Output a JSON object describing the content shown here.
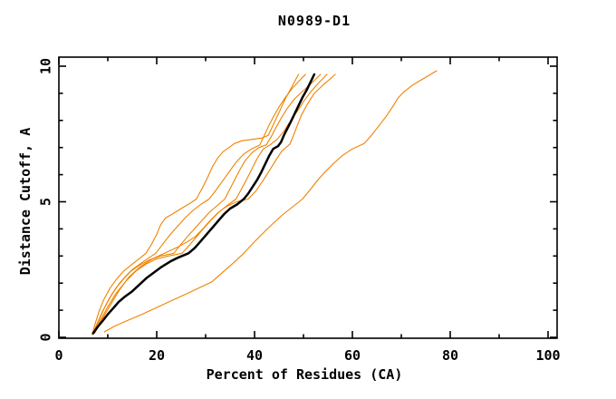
{
  "title": "N0989-D1",
  "axes": {
    "xlabel": "Percent of Residues (CA)",
    "ylabel": "Distance Cutoff, A"
  },
  "chart_data": {
    "type": "line",
    "title": "N0989-D1",
    "xlabel": "Percent of Residues (CA)",
    "ylabel": "Distance Cutoff, A",
    "xlim": [
      0,
      100
    ],
    "ylim": [
      0,
      10
    ],
    "grid": false,
    "legend": "none",
    "x_major_ticks": [
      0,
      20,
      40,
      60,
      80,
      100
    ],
    "x_tick_labels": [
      "0",
      "20",
      "40",
      "60",
      "80",
      "100"
    ],
    "x_minor_step": 10,
    "y_major_ticks": [
      0,
      5,
      10
    ],
    "y_tick_labels": [
      "0",
      "5",
      "10"
    ],
    "y_minor_step": 1,
    "colors": {
      "highlight_curve": "#000000",
      "other_curves": "#f08200",
      "frame": "#000000",
      "background": "#ffffff"
    },
    "series": [
      {
        "name": "orange-curve-1",
        "color": "#f08200",
        "width": 1.1,
        "points": [
          [
            6.8,
            0.1
          ],
          [
            7.4,
            0.5
          ],
          [
            8.2,
            0.95
          ],
          [
            9.2,
            1.4
          ],
          [
            10.4,
            1.8
          ],
          [
            11.8,
            2.15
          ],
          [
            13.3,
            2.45
          ],
          [
            15,
            2.7
          ],
          [
            16.4,
            2.9
          ],
          [
            17.8,
            3.1
          ],
          [
            19,
            3.45
          ],
          [
            20,
            3.8
          ],
          [
            20.8,
            4.15
          ],
          [
            21.8,
            4.4
          ],
          [
            23.2,
            4.55
          ],
          [
            25,
            4.75
          ],
          [
            26.6,
            4.92
          ],
          [
            28.1,
            5.1
          ],
          [
            29.3,
            5.5
          ],
          [
            30.4,
            5.9
          ],
          [
            31.4,
            6.3
          ],
          [
            32.4,
            6.6
          ],
          [
            33.6,
            6.85
          ],
          [
            34.8,
            7.0
          ],
          [
            35.9,
            7.15
          ],
          [
            37.5,
            7.25
          ],
          [
            39.5,
            7.3
          ],
          [
            41.5,
            7.35
          ],
          [
            42.8,
            7.45
          ],
          [
            43.6,
            7.75
          ],
          [
            44.5,
            8.1
          ],
          [
            45.4,
            8.45
          ],
          [
            46.3,
            8.8
          ],
          [
            47.2,
            9.1
          ],
          [
            48.1,
            9.4
          ],
          [
            49,
            9.7
          ]
        ]
      },
      {
        "name": "orange-curve-2",
        "color": "#f08200",
        "width": 1.1,
        "points": [
          [
            6.9,
            0.12
          ],
          [
            7.8,
            0.5
          ],
          [
            8.9,
            0.95
          ],
          [
            10.2,
            1.4
          ],
          [
            11.6,
            1.8
          ],
          [
            13.2,
            2.15
          ],
          [
            15,
            2.5
          ],
          [
            17.3,
            2.8
          ],
          [
            19.8,
            3.1
          ],
          [
            21.3,
            3.45
          ],
          [
            22.8,
            3.8
          ],
          [
            24.3,
            4.1
          ],
          [
            25.8,
            4.4
          ],
          [
            27.4,
            4.68
          ],
          [
            29,
            4.9
          ],
          [
            30.7,
            5.1
          ],
          [
            32,
            5.4
          ],
          [
            33.4,
            5.75
          ],
          [
            34.8,
            6.1
          ],
          [
            36.2,
            6.45
          ],
          [
            37.7,
            6.75
          ],
          [
            39.4,
            6.95
          ],
          [
            41.1,
            7.1
          ],
          [
            42,
            7.45
          ],
          [
            42.9,
            7.8
          ],
          [
            43.9,
            8.15
          ],
          [
            45,
            8.5
          ],
          [
            46.3,
            8.85
          ],
          [
            47.8,
            9.2
          ],
          [
            49.1,
            9.45
          ],
          [
            50.4,
            9.7
          ]
        ]
      },
      {
        "name": "orange-curve-3",
        "color": "#f08200",
        "width": 1.1,
        "points": [
          [
            7,
            0.12
          ],
          [
            8,
            0.55
          ],
          [
            9.2,
            1.05
          ],
          [
            10.7,
            1.55
          ],
          [
            12.4,
            2.0
          ],
          [
            14.4,
            2.4
          ],
          [
            16.4,
            2.65
          ],
          [
            18.4,
            2.85
          ],
          [
            20.8,
            3.0
          ],
          [
            23.5,
            3.1
          ],
          [
            24.9,
            3.42
          ],
          [
            26.3,
            3.72
          ],
          [
            27.7,
            4.0
          ],
          [
            29.2,
            4.3
          ],
          [
            30.7,
            4.6
          ],
          [
            32.3,
            4.85
          ],
          [
            33.9,
            5.1
          ],
          [
            34.9,
            5.45
          ],
          [
            35.9,
            5.8
          ],
          [
            36.9,
            6.15
          ],
          [
            38,
            6.5
          ],
          [
            39.4,
            6.8
          ],
          [
            40.9,
            7.0
          ],
          [
            42.4,
            7.1
          ],
          [
            43.4,
            7.4
          ],
          [
            44.4,
            7.75
          ],
          [
            45.5,
            8.1
          ],
          [
            46.7,
            8.45
          ],
          [
            48.2,
            8.8
          ],
          [
            50,
            9.1
          ],
          [
            51.8,
            9.4
          ],
          [
            53.5,
            9.7
          ]
        ]
      },
      {
        "name": "orange-curve-4",
        "color": "#f08200",
        "width": 1.1,
        "points": [
          [
            7.2,
            0.15
          ],
          [
            8.4,
            0.6
          ],
          [
            9.9,
            1.1
          ],
          [
            11.6,
            1.6
          ],
          [
            13.6,
            2.05
          ],
          [
            15.8,
            2.45
          ],
          [
            17.8,
            2.7
          ],
          [
            19.8,
            2.88
          ],
          [
            22.4,
            3.0
          ],
          [
            25.2,
            3.1
          ],
          [
            26.7,
            3.4
          ],
          [
            28.1,
            3.7
          ],
          [
            29.5,
            4.0
          ],
          [
            31,
            4.3
          ],
          [
            32.6,
            4.6
          ],
          [
            34.3,
            4.85
          ],
          [
            36.2,
            5.1
          ],
          [
            37.4,
            5.5
          ],
          [
            38.6,
            5.9
          ],
          [
            39.7,
            6.3
          ],
          [
            40.7,
            6.65
          ],
          [
            41.8,
            6.95
          ],
          [
            43.2,
            7.1
          ],
          [
            44.6,
            7.3
          ],
          [
            46,
            7.6
          ],
          [
            47.4,
            8.0
          ],
          [
            48.8,
            8.35
          ],
          [
            50.2,
            8.75
          ],
          [
            51.7,
            9.1
          ],
          [
            53.2,
            9.4
          ],
          [
            54.8,
            9.7
          ]
        ]
      },
      {
        "name": "orange-curve-5",
        "color": "#f08200",
        "width": 1.1,
        "points": [
          [
            7.3,
            0.15
          ],
          [
            8.7,
            0.62
          ],
          [
            10.4,
            1.15
          ],
          [
            12.2,
            1.7
          ],
          [
            14.2,
            2.2
          ],
          [
            16.6,
            2.6
          ],
          [
            19.2,
            2.9
          ],
          [
            21.8,
            3.12
          ],
          [
            24.2,
            3.32
          ],
          [
            26.2,
            3.52
          ],
          [
            27.9,
            3.72
          ],
          [
            29.4,
            4.0
          ],
          [
            30.9,
            4.3
          ],
          [
            32.4,
            4.58
          ],
          [
            34.2,
            4.82
          ],
          [
            36.3,
            5.0
          ],
          [
            38.7,
            5.1
          ],
          [
            40.3,
            5.4
          ],
          [
            41.8,
            5.8
          ],
          [
            43.2,
            6.2
          ],
          [
            44.4,
            6.55
          ],
          [
            45.5,
            6.85
          ],
          [
            46.4,
            7.0
          ],
          [
            47.2,
            7.12
          ],
          [
            47.9,
            7.42
          ],
          [
            48.7,
            7.8
          ],
          [
            49.6,
            8.2
          ],
          [
            50.8,
            8.6
          ],
          [
            52.2,
            9.0
          ],
          [
            54.3,
            9.35
          ],
          [
            56.5,
            9.7
          ]
        ]
      },
      {
        "name": "orange-curve-6",
        "color": "#f08200",
        "width": 1.1,
        "points": [
          [
            9.3,
            0.2
          ],
          [
            11.5,
            0.42
          ],
          [
            14,
            0.62
          ],
          [
            17,
            0.85
          ],
          [
            20,
            1.1
          ],
          [
            23,
            1.35
          ],
          [
            26,
            1.6
          ],
          [
            28.6,
            1.82
          ],
          [
            31.3,
            2.05
          ],
          [
            33.5,
            2.4
          ],
          [
            35.7,
            2.75
          ],
          [
            37.8,
            3.1
          ],
          [
            39.6,
            3.45
          ],
          [
            41.5,
            3.8
          ],
          [
            43.5,
            4.15
          ],
          [
            45.6,
            4.5
          ],
          [
            47.7,
            4.8
          ],
          [
            49.8,
            5.1
          ],
          [
            51.4,
            5.45
          ],
          [
            52.9,
            5.8
          ],
          [
            54.4,
            6.1
          ],
          [
            56.1,
            6.4
          ],
          [
            57.9,
            6.7
          ],
          [
            60,
            6.95
          ],
          [
            62.4,
            7.15
          ],
          [
            63.9,
            7.45
          ],
          [
            65.4,
            7.8
          ],
          [
            66.9,
            8.15
          ],
          [
            68.2,
            8.5
          ],
          [
            69.3,
            8.82
          ],
          [
            70.5,
            9.05
          ],
          [
            72.3,
            9.3
          ],
          [
            74.6,
            9.55
          ],
          [
            77.2,
            9.83
          ]
        ]
      },
      {
        "name": "black-curve",
        "color": "#000000",
        "width": 2.5,
        "points": [
          [
            7,
            0.15
          ],
          [
            8,
            0.4
          ],
          [
            9,
            0.62
          ],
          [
            10,
            0.85
          ],
          [
            11,
            1.05
          ],
          [
            12.2,
            1.3
          ],
          [
            13.5,
            1.5
          ],
          [
            15,
            1.7
          ],
          [
            16.5,
            1.95
          ],
          [
            18,
            2.2
          ],
          [
            19.5,
            2.4
          ],
          [
            21,
            2.6
          ],
          [
            22.8,
            2.8
          ],
          [
            24.5,
            2.95
          ],
          [
            26.5,
            3.1
          ],
          [
            27.8,
            3.3
          ],
          [
            29,
            3.55
          ],
          [
            30.2,
            3.8
          ],
          [
            31.4,
            4.05
          ],
          [
            32.6,
            4.3
          ],
          [
            33.8,
            4.55
          ],
          [
            35,
            4.75
          ],
          [
            36.4,
            4.9
          ],
          [
            37.8,
            5.1
          ],
          [
            38.7,
            5.3
          ],
          [
            39.6,
            5.55
          ],
          [
            40.5,
            5.8
          ],
          [
            41.4,
            6.1
          ],
          [
            42.2,
            6.4
          ],
          [
            43,
            6.7
          ],
          [
            43.8,
            6.95
          ],
          [
            44.8,
            7.05
          ],
          [
            45.4,
            7.2
          ],
          [
            46,
            7.45
          ],
          [
            46.7,
            7.7
          ],
          [
            47.4,
            7.95
          ],
          [
            48.2,
            8.25
          ],
          [
            49,
            8.55
          ],
          [
            49.8,
            8.85
          ],
          [
            50.6,
            9.1
          ],
          [
            51.4,
            9.4
          ],
          [
            52.2,
            9.7
          ]
        ]
      }
    ]
  }
}
